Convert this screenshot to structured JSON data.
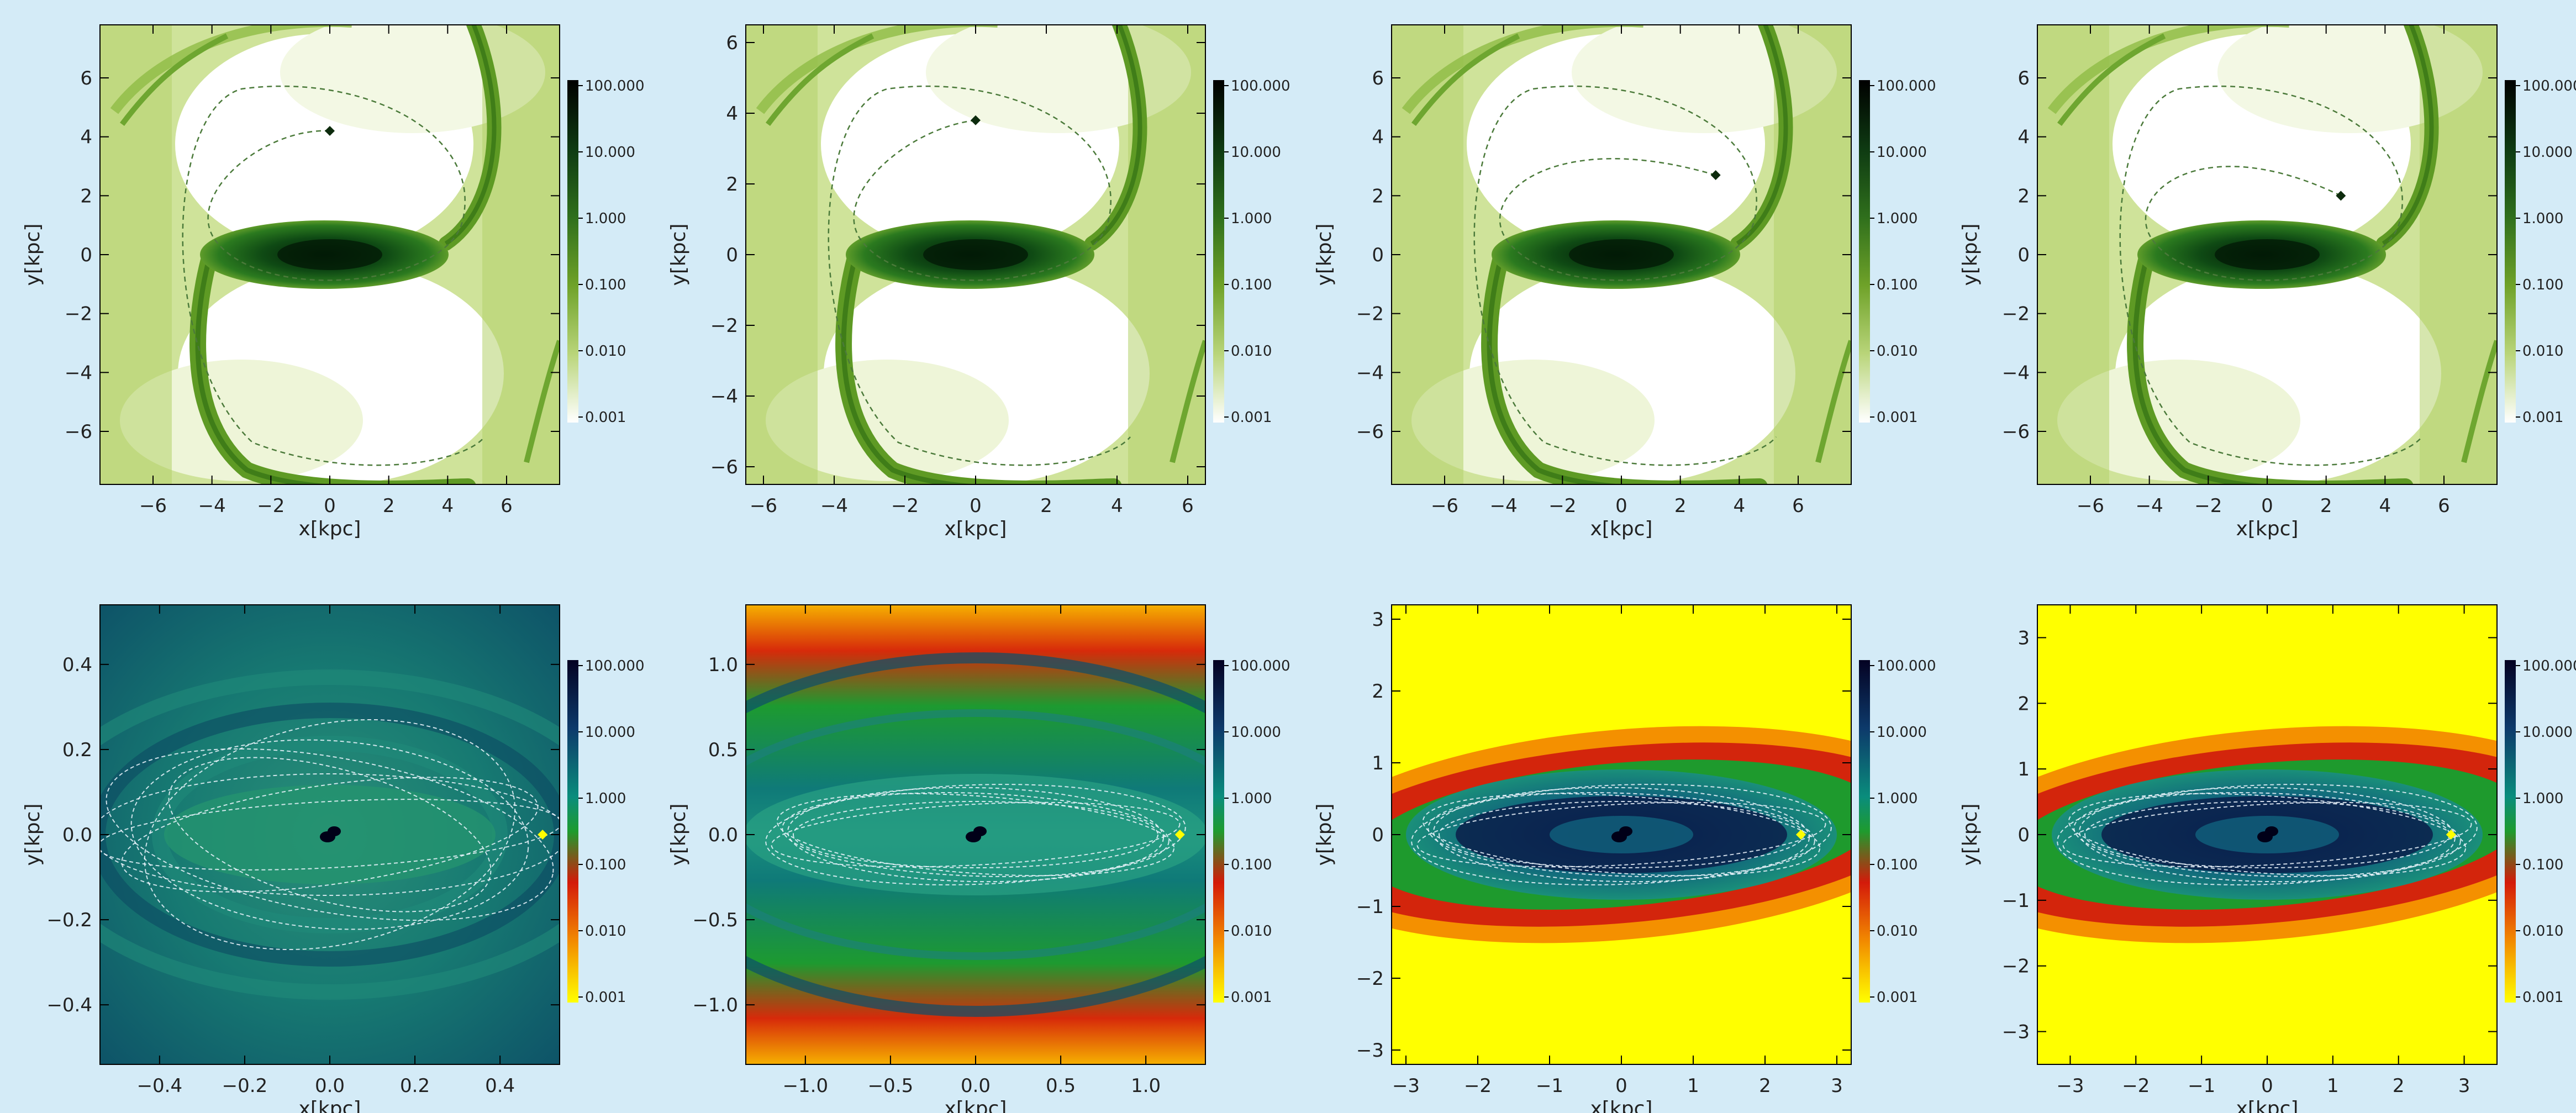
{
  "chart_data": [
    {
      "type": "heatmap",
      "xlabel": "x[kpc]",
      "ylabel": "y[kpc]",
      "xlim": [
        -7.8,
        7.8
      ],
      "ylim": [
        -7.8,
        7.8
      ],
      "xticks": [
        -6,
        -4,
        -2,
        0,
        2,
        4,
        6
      ],
      "yticks": [
        -6,
        -4,
        -2,
        0,
        2,
        4,
        6
      ],
      "tick_labels_x": [
        "−6",
        "−4",
        "−2",
        "0",
        "2",
        "4",
        "6"
      ],
      "tick_labels_y": [
        "−6",
        "−4",
        "−2",
        "0",
        "2",
        "4",
        "6"
      ],
      "colormap": "green",
      "colorbar_ticks": [
        "100.000",
        "10.000",
        "1.000",
        "0.100",
        "0.010",
        "0.001"
      ],
      "marker": {
        "x": 0.0,
        "y": 4.2
      }
    },
    {
      "type": "heatmap",
      "xlabel": "x[kpc]",
      "ylabel": "y[kpc]",
      "xlim": [
        -6.5,
        6.5
      ],
      "ylim": [
        -6.5,
        6.5
      ],
      "xticks": [
        -6,
        -4,
        -2,
        0,
        2,
        4,
        6
      ],
      "yticks": [
        -6,
        -4,
        -2,
        0,
        2,
        4,
        6
      ],
      "tick_labels_x": [
        "−6",
        "−4",
        "−2",
        "0",
        "2",
        "4",
        "6"
      ],
      "tick_labels_y": [
        "−6",
        "−4",
        "−2",
        "0",
        "2",
        "4",
        "6"
      ],
      "colormap": "green",
      "colorbar_ticks": [
        "100.000",
        "10.000",
        "1.000",
        "0.100",
        "0.010",
        "0.001"
      ],
      "marker": {
        "x": 0.0,
        "y": 3.8
      }
    },
    {
      "type": "heatmap",
      "xlabel": "x[kpc]",
      "ylabel": "y[kpc]",
      "xlim": [
        -7.8,
        7.8
      ],
      "ylim": [
        -7.8,
        7.8
      ],
      "xticks": [
        -6,
        -4,
        -2,
        0,
        2,
        4,
        6
      ],
      "yticks": [
        -6,
        -4,
        -2,
        0,
        2,
        4,
        6
      ],
      "tick_labels_x": [
        "−6",
        "−4",
        "−2",
        "0",
        "2",
        "4",
        "6"
      ],
      "tick_labels_y": [
        "−6",
        "−4",
        "−2",
        "0",
        "2",
        "4",
        "6"
      ],
      "colormap": "green",
      "colorbar_ticks": [
        "100.000",
        "10.000",
        "1.000",
        "0.100",
        "0.010",
        "0.001"
      ],
      "marker": {
        "x": 3.2,
        "y": 2.7
      }
    },
    {
      "type": "heatmap",
      "xlabel": "x[kpc]",
      "ylabel": "y[kpc]",
      "xlim": [
        -7.8,
        7.8
      ],
      "ylim": [
        -7.8,
        7.8
      ],
      "xticks": [
        -6,
        -4,
        -2,
        0,
        2,
        4,
        6
      ],
      "yticks": [
        -6,
        -4,
        -2,
        0,
        2,
        4,
        6
      ],
      "tick_labels_x": [
        "−6",
        "−4",
        "−2",
        "0",
        "2",
        "4",
        "6"
      ],
      "tick_labels_y": [
        "−6",
        "−4",
        "−2",
        "0",
        "2",
        "4",
        "6"
      ],
      "colormap": "green",
      "colorbar_ticks": [
        "100.000",
        "10.000",
        "1.000",
        "0.100",
        "0.010",
        "0.001"
      ],
      "marker": {
        "x": 2.5,
        "y": 2.0
      }
    },
    {
      "type": "heatmap",
      "xlabel": "x[kpc]",
      "ylabel": "y[kpc]",
      "xlim": [
        -0.54,
        0.54
      ],
      "ylim": [
        -0.54,
        0.54
      ],
      "xticks": [
        -0.4,
        -0.2,
        0.0,
        0.2,
        0.4
      ],
      "yticks": [
        -0.4,
        -0.2,
        0.0,
        0.2,
        0.4
      ],
      "tick_labels_x": [
        "−0.4",
        "−0.2",
        "0.0",
        "0.2",
        "0.4"
      ],
      "tick_labels_y": [
        "−0.4",
        "−0.2",
        "0.0",
        "0.2",
        "0.4"
      ],
      "colormap": "rainbow",
      "colorbar_ticks": [
        "100.000",
        "10.000",
        "1.000",
        "0.100",
        "0.010",
        "0.001"
      ],
      "marker": {
        "x": 0.5,
        "y": 0.0
      }
    },
    {
      "type": "heatmap",
      "xlabel": "x[kpc]",
      "ylabel": "y[kpc]",
      "xlim": [
        -1.35,
        1.35
      ],
      "ylim": [
        -1.35,
        1.35
      ],
      "xticks": [
        -1.0,
        -0.5,
        0.0,
        0.5,
        1.0
      ],
      "yticks": [
        -1.0,
        -0.5,
        0.0,
        0.5,
        1.0
      ],
      "tick_labels_x": [
        "−1.0",
        "−0.5",
        "0.0",
        "0.5",
        "1.0"
      ],
      "tick_labels_y": [
        "−1.0",
        "−0.5",
        "0.0",
        "0.5",
        "1.0"
      ],
      "colormap": "rainbow",
      "colorbar_ticks": [
        "100.000",
        "10.000",
        "1.000",
        "0.100",
        "0.010",
        "0.001"
      ],
      "marker": {
        "x": 1.2,
        "y": 0.0
      }
    },
    {
      "type": "heatmap",
      "xlabel": "x[kpc]",
      "ylabel": "y[kpc]",
      "xlim": [
        -3.2,
        3.2
      ],
      "ylim": [
        -3.2,
        3.2
      ],
      "xticks": [
        -3,
        -2,
        -1,
        0,
        1,
        2,
        3
      ],
      "yticks": [
        -3,
        -2,
        -1,
        0,
        1,
        2,
        3
      ],
      "tick_labels_x": [
        "−3",
        "−2",
        "−1",
        "0",
        "1",
        "2",
        "3"
      ],
      "tick_labels_y": [
        "−3",
        "−2",
        "−1",
        "0",
        "1",
        "2",
        "3"
      ],
      "colormap": "rainbow",
      "colorbar_ticks": [
        "100.000",
        "10.000",
        "1.000",
        "0.100",
        "0.010",
        "0.001"
      ],
      "marker": {
        "x": 2.5,
        "y": 0.0
      }
    },
    {
      "type": "heatmap",
      "xlabel": "x[kpc]",
      "ylabel": "y[kpc]",
      "xlim": [
        -3.5,
        3.5
      ],
      "ylim": [
        -3.5,
        3.5
      ],
      "xticks": [
        -3,
        -2,
        -1,
        0,
        1,
        2,
        3
      ],
      "yticks": [
        -3,
        -2,
        -1,
        0,
        1,
        2,
        3
      ],
      "tick_labels_x": [
        "−3",
        "−2",
        "−1",
        "0",
        "1",
        "2",
        "3"
      ],
      "tick_labels_y": [
        "−3",
        "−2",
        "−1",
        "0",
        "1",
        "2",
        "3"
      ],
      "colormap": "rainbow",
      "colorbar_ticks": [
        "100.000",
        "10.000",
        "1.000",
        "0.100",
        "0.010",
        "0.001"
      ],
      "marker": {
        "x": 2.8,
        "y": 0.0
      }
    }
  ]
}
